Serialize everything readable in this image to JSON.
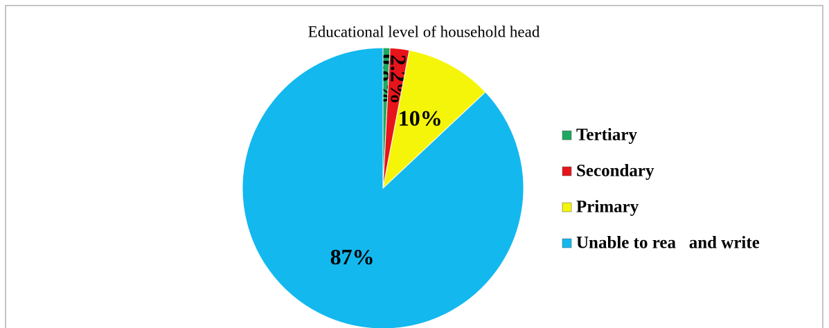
{
  "chart_data": {
    "type": "pie",
    "title": "Educational level of household head",
    "categories": [
      "Tertiary",
      "Secondary",
      "Primary",
      "Unable to rea   and write"
    ],
    "values": [
      0.8,
      2.2,
      10,
      87
    ],
    "value_labels": [
      "0.8%",
      "2.2%",
      "10%",
      "87%"
    ],
    "colors": [
      "#1fa860",
      "#e8141b",
      "#f5f50a",
      "#13b8ef"
    ],
    "legend": "right"
  }
}
